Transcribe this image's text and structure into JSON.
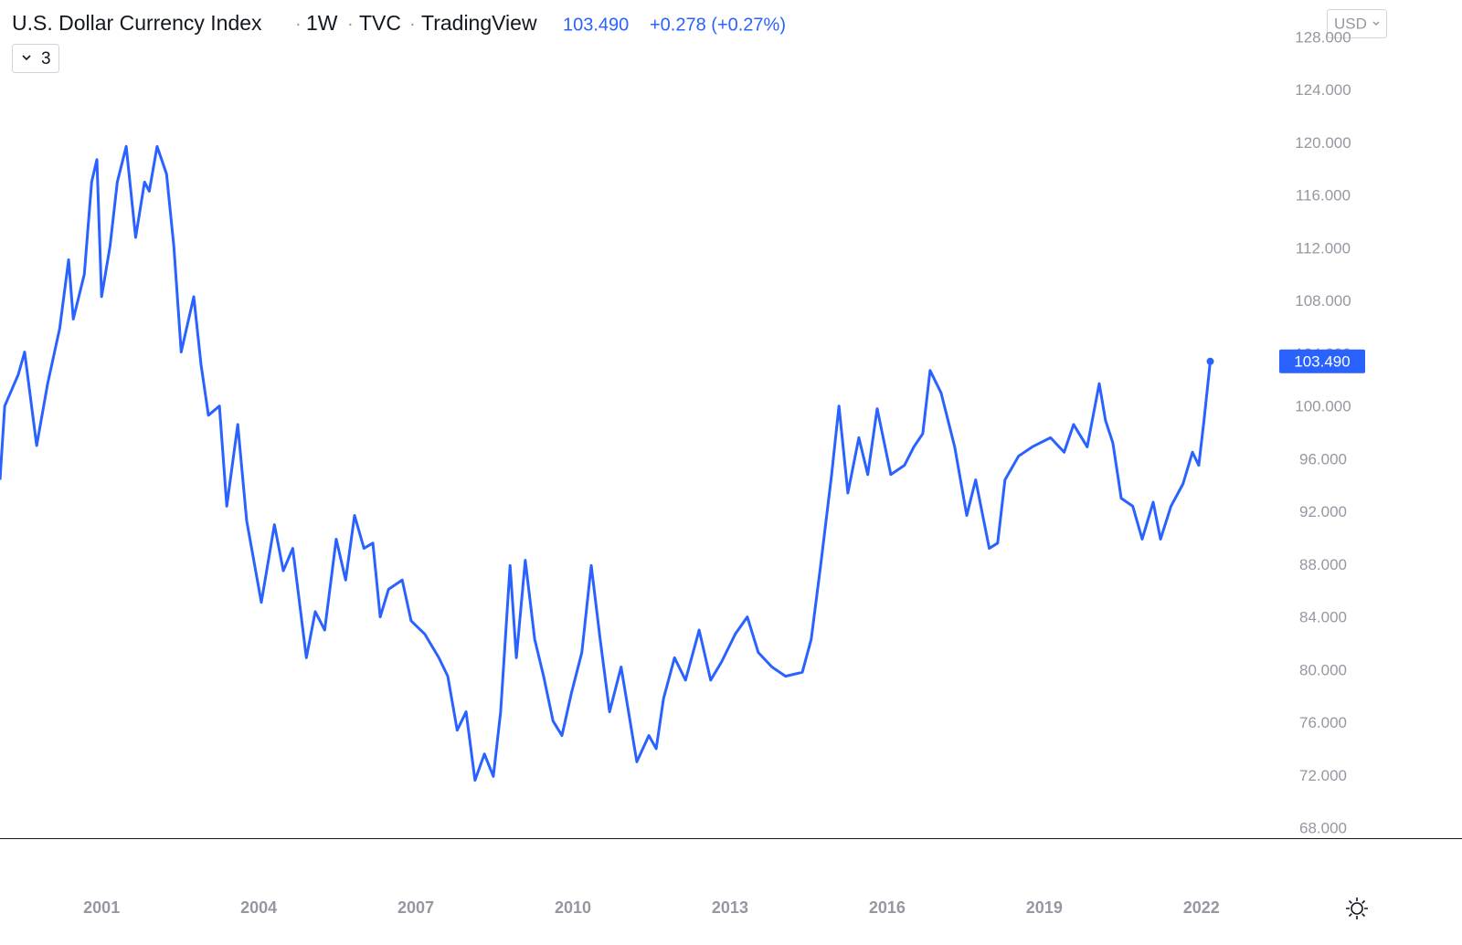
{
  "chart_data": {
    "type": "line",
    "title": "U.S. Dollar Currency Index",
    "interval": "1W",
    "exchange": "TVC",
    "source": "TradingView",
    "price": "103.490",
    "change": "+0.278 (+0.27%)",
    "indicator_count": "3",
    "currency": "USD",
    "grid": false,
    "x": [
      1999.06,
      1999.15,
      1999.41,
      1999.53,
      1999.76,
      1999.97,
      2000.2,
      2000.37,
      2000.46,
      2000.67,
      2000.81,
      2000.91,
      2001.0,
      2001.16,
      2001.3,
      2001.47,
      2001.65,
      2001.82,
      2001.91,
      2002.06,
      2002.24,
      2002.38,
      2002.52,
      2002.76,
      2002.9,
      2003.04,
      2003.25,
      2003.39,
      2003.6,
      2003.77,
      2004.05,
      2004.3,
      2004.47,
      2004.65,
      2004.91,
      2005.08,
      2005.26,
      2005.48,
      2005.66,
      2005.83,
      2006.01,
      2006.18,
      2006.32,
      2006.48,
      2006.74,
      2006.91,
      2007.17,
      2007.44,
      2007.61,
      2007.79,
      2007.96,
      2008.13,
      2008.31,
      2008.48,
      2008.62,
      2008.8,
      2008.92,
      2009.09,
      2009.27,
      2009.44,
      2009.62,
      2009.79,
      2009.97,
      2010.17,
      2010.35,
      2010.52,
      2010.7,
      2010.92,
      2011.22,
      2011.45,
      2011.59,
      2011.73,
      2011.94,
      2012.15,
      2012.41,
      2012.63,
      2012.84,
      2013.1,
      2013.33,
      2013.54,
      2013.8,
      2014.06,
      2014.38,
      2014.55,
      2014.73,
      2014.94,
      2015.08,
      2015.25,
      2015.46,
      2015.63,
      2015.81,
      2016.07,
      2016.33,
      2016.51,
      2016.68,
      2016.82,
      2017.03,
      2017.29,
      2017.52,
      2017.69,
      2017.95,
      2018.11,
      2018.25,
      2018.51,
      2018.77,
      2019.12,
      2019.38,
      2019.56,
      2019.82,
      2020.05,
      2020.17,
      2020.31,
      2020.47,
      2020.69,
      2020.87,
      2021.08,
      2021.22,
      2021.42,
      2021.65,
      2021.83,
      2021.95,
      2022.05,
      2022.17
    ],
    "series": [
      {
        "name": "U.S. Dollar Currency Index",
        "color": "#2962ff",
        "values": [
          94.5,
          100.1,
          102.5,
          104.2,
          97.1,
          101.8,
          106.0,
          111.2,
          106.7,
          110.1,
          117.1,
          118.8,
          108.4,
          112.2,
          117.1,
          119.8,
          112.9,
          117.1,
          116.4,
          119.8,
          117.7,
          112.2,
          104.2,
          108.4,
          103.2,
          99.4,
          100.1,
          92.5,
          98.7,
          91.4,
          85.2,
          91.1,
          87.6,
          89.3,
          81.0,
          84.5,
          83.1,
          90.0,
          86.9,
          91.8,
          89.3,
          89.7,
          84.1,
          86.2,
          86.9,
          83.8,
          82.8,
          81.0,
          79.6,
          75.5,
          76.9,
          71.7,
          73.7,
          72.0,
          76.9,
          88.0,
          81.0,
          88.4,
          82.4,
          79.6,
          76.2,
          75.1,
          78.3,
          81.4,
          88.0,
          82.4,
          76.9,
          80.3,
          73.1,
          75.1,
          74.1,
          77.9,
          81.0,
          79.3,
          83.1,
          79.3,
          80.7,
          82.8,
          84.1,
          81.4,
          80.3,
          79.6,
          79.9,
          82.4,
          88.0,
          94.9,
          100.1,
          93.5,
          97.7,
          94.9,
          99.9,
          94.9,
          95.6,
          97.0,
          98.0,
          102.8,
          101.1,
          97.0,
          91.8,
          94.5,
          89.3,
          89.7,
          94.5,
          96.3,
          97.0,
          97.7,
          96.6,
          98.7,
          97.0,
          101.8,
          99.0,
          97.3,
          93.1,
          92.5,
          90.0,
          92.8,
          90.0,
          92.5,
          94.2,
          96.6,
          95.6,
          99.0,
          103.49
        ]
      }
    ],
    "xlim": [
      1999.06,
      2023.4
    ],
    "xticks": [
      2001,
      2004,
      2007,
      2010,
      2013,
      2016,
      2019,
      2022
    ],
    "ylim": [
      67.31,
      130.91
    ],
    "yticks": [
      {
        "value": 68,
        "label": "68.000"
      },
      {
        "value": 72,
        "label": "72.000"
      },
      {
        "value": 76,
        "label": "76.000"
      },
      {
        "value": 80,
        "label": "80.000"
      },
      {
        "value": 84,
        "label": "84.000"
      },
      {
        "value": 88,
        "label": "88.000"
      },
      {
        "value": 92,
        "label": "92.000"
      },
      {
        "value": 96,
        "label": "96.000"
      },
      {
        "value": 100,
        "label": "100.000"
      },
      {
        "value": 104,
        "label": "104.000"
      },
      {
        "value": 108,
        "label": "108.000"
      },
      {
        "value": 112,
        "label": "112.000"
      },
      {
        "value": 116,
        "label": "116.000"
      },
      {
        "value": 120,
        "label": "120.000"
      },
      {
        "value": 124,
        "label": "124.000"
      },
      {
        "value": 128,
        "label": "128.000"
      }
    ]
  }
}
